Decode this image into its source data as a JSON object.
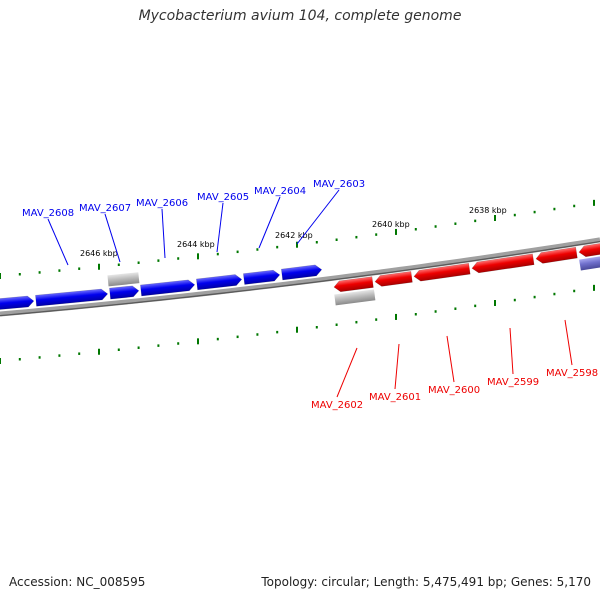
{
  "title": "Mycobacterium avium 104, complete genome",
  "footer": {
    "accession": "Accession: NC_008595",
    "info": "Topology: circular; Length: 5,475,491 bp; Genes: 5,170"
  },
  "colors": {
    "forward_gene": "#0000ee",
    "reverse_gene": "#ee0000",
    "pseudogene": "#bbbbbb",
    "other_gene": "#7070cc",
    "backbone": "#808080",
    "ticks": "#007700"
  },
  "scale_labels": [
    "2646 kbp",
    "2644 kbp",
    "2642 kbp",
    "2640 kbp",
    "2638 kbp"
  ],
  "forward_gene_labels": [
    "MAV_2608",
    "MAV_2607",
    "MAV_2606",
    "MAV_2605",
    "MAV_2604",
    "MAV_2603"
  ],
  "reverse_gene_labels": [
    "MAV_2602",
    "MAV_2601",
    "MAV_2600",
    "MAV_2599",
    "MAV_2598"
  ]
}
